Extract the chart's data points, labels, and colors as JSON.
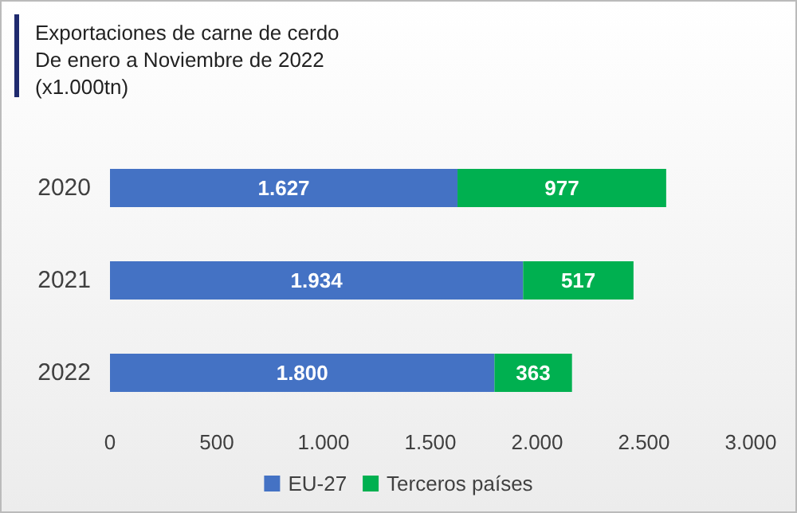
{
  "chart_data": {
    "type": "bar",
    "orientation": "horizontal",
    "stacked": true,
    "title": "Exportaciones de carne de cerdo",
    "subtitle": "De enero a Noviembre de 2022",
    "annotations": [
      "(x1.000tn)"
    ],
    "categories": [
      "2020",
      "2021",
      "2022"
    ],
    "series": [
      {
        "name": "EU-27",
        "color": "#4472c4",
        "values": [
          1627,
          1934,
          1800
        ],
        "value_labels": [
          "1.627",
          "1.934",
          "1.800"
        ]
      },
      {
        "name": "Terceros países",
        "color": "#00b050",
        "values": [
          977,
          517,
          363
        ],
        "value_labels": [
          "977",
          "517",
          "363"
        ]
      }
    ],
    "xlim": [
      0,
      3000
    ],
    "xticks": [
      0,
      500,
      {
        "value": 1000,
        "label": "1.000"
      },
      {
        "value": 1500,
        "label": "1.500"
      },
      {
        "value": 2000,
        "label": "2.000"
      },
      {
        "value": 2500,
        "label": "2.500"
      },
      {
        "value": 3000,
        "label": "3.000"
      }
    ],
    "grid": false,
    "legend": "bottom"
  }
}
